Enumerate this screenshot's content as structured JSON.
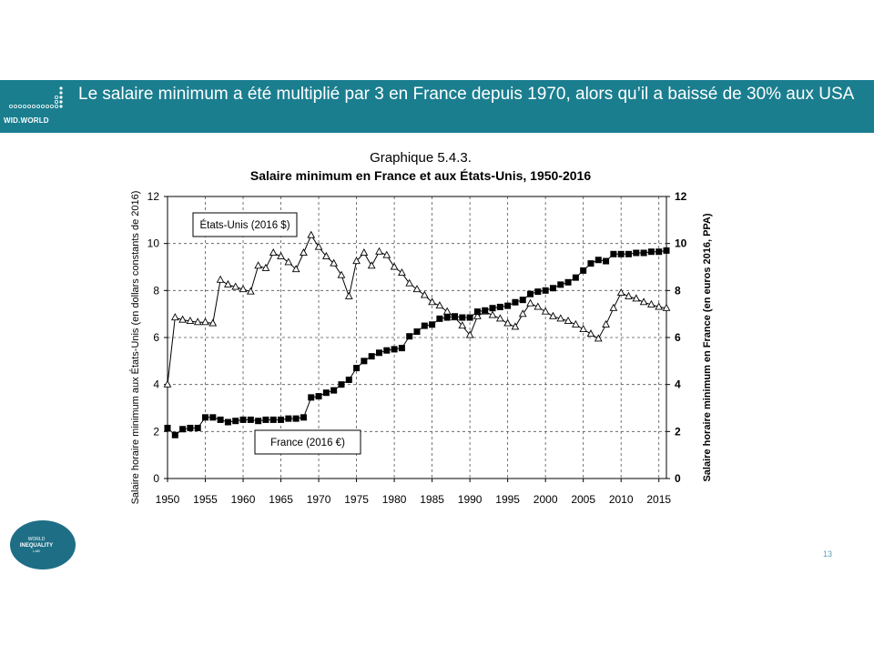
{
  "header": {
    "title": "Le salaire minimum a été multiplié par 3 en France depuis 1970, alors qu’il a baissé de 30% aux USA",
    "logo_text": "WID.WORLD"
  },
  "footer": {
    "logo_lines": [
      "WORLD",
      "INEQUALITY",
      "LAB"
    ],
    "page_number": "13"
  },
  "colors": {
    "banner": "#1a7e8f",
    "footer_logo": "#1e6e86"
  },
  "chart_data": {
    "type": "line",
    "title": "Graphique 5.4.3.",
    "subtitle": "Salaire minimum en France et aux États-Unis, 1950-2016",
    "ylabel_left": "Salaire horaire minimum aux États-Unis (en dollars constants de 2016)",
    "ylabel_right": "Salaire horaire minimum en France (en euros 2016, PPA)",
    "xlim": [
      1950,
      2016
    ],
    "ylim": [
      0,
      12
    ],
    "x_ticks": [
      1950,
      1955,
      1960,
      1965,
      1970,
      1975,
      1980,
      1985,
      1990,
      1995,
      2000,
      2005,
      2010,
      2015
    ],
    "y_ticks": [
      0,
      2,
      4,
      6,
      8,
      10,
      12
    ],
    "grid": true,
    "series": [
      {
        "name": "États-Unis (2016 $)",
        "marker": "open-triangle",
        "x": [
          1950,
          1951,
          1952,
          1953,
          1954,
          1955,
          1956,
          1957,
          1958,
          1959,
          1960,
          1961,
          1962,
          1963,
          1964,
          1965,
          1966,
          1967,
          1968,
          1969,
          1970,
          1971,
          1972,
          1973,
          1974,
          1975,
          1976,
          1977,
          1978,
          1979,
          1980,
          1981,
          1982,
          1983,
          1984,
          1985,
          1986,
          1987,
          1988,
          1989,
          1990,
          1991,
          1992,
          1993,
          1994,
          1995,
          1996,
          1997,
          1998,
          1999,
          2000,
          2001,
          2002,
          2003,
          2004,
          2005,
          2006,
          2007,
          2008,
          2009,
          2010,
          2011,
          2012,
          2013,
          2014,
          2015,
          2016
        ],
        "y": [
          4.0,
          6.85,
          6.75,
          6.7,
          6.65,
          6.65,
          6.6,
          8.45,
          8.25,
          8.15,
          8.05,
          7.95,
          9.05,
          8.95,
          9.6,
          9.45,
          9.2,
          8.9,
          9.6,
          10.35,
          9.85,
          9.45,
          9.15,
          8.65,
          7.75,
          9.25,
          9.6,
          9.05,
          9.65,
          9.5,
          9.0,
          8.75,
          8.3,
          8.05,
          7.8,
          7.5,
          7.35,
          7.1,
          6.85,
          6.5,
          6.1,
          6.9,
          7.1,
          6.95,
          6.8,
          6.6,
          6.45,
          7.0,
          7.45,
          7.3,
          7.1,
          6.9,
          6.8,
          6.7,
          6.55,
          6.35,
          6.15,
          5.95,
          6.55,
          7.25,
          7.9,
          7.75,
          7.65,
          7.5,
          7.4,
          7.3,
          7.25
        ]
      },
      {
        "name": "France (2016 €)",
        "marker": "filled-square",
        "x": [
          1950,
          1951,
          1952,
          1953,
          1954,
          1955,
          1956,
          1957,
          1958,
          1959,
          1960,
          1961,
          1962,
          1963,
          1964,
          1965,
          1966,
          1967,
          1968,
          1969,
          1970,
          1971,
          1972,
          1973,
          1974,
          1975,
          1976,
          1977,
          1978,
          1979,
          1980,
          1981,
          1982,
          1983,
          1984,
          1985,
          1986,
          1987,
          1988,
          1989,
          1990,
          1991,
          1992,
          1993,
          1994,
          1995,
          1996,
          1997,
          1998,
          1999,
          2000,
          2001,
          2002,
          2003,
          2004,
          2005,
          2006,
          2007,
          2008,
          2009,
          2010,
          2011,
          2012,
          2013,
          2014,
          2015,
          2016
        ],
        "y": [
          2.15,
          1.85,
          2.1,
          2.15,
          2.15,
          2.6,
          2.6,
          2.5,
          2.4,
          2.45,
          2.5,
          2.5,
          2.45,
          2.5,
          2.5,
          2.5,
          2.55,
          2.55,
          2.6,
          3.45,
          3.5,
          3.65,
          3.75,
          4.0,
          4.2,
          4.7,
          5.0,
          5.2,
          5.35,
          5.45,
          5.5,
          5.55,
          6.05,
          6.25,
          6.5,
          6.55,
          6.8,
          6.85,
          6.9,
          6.85,
          6.85,
          7.1,
          7.15,
          7.25,
          7.3,
          7.35,
          7.5,
          7.6,
          7.85,
          7.95,
          8.0,
          8.1,
          8.25,
          8.35,
          8.55,
          8.85,
          9.15,
          9.3,
          9.25,
          9.55,
          9.55,
          9.55,
          9.6,
          9.6,
          9.65,
          9.65,
          9.7
        ]
      }
    ],
    "annotations": [
      "États-Unis (2016 $)",
      "France (2016 €)"
    ]
  }
}
